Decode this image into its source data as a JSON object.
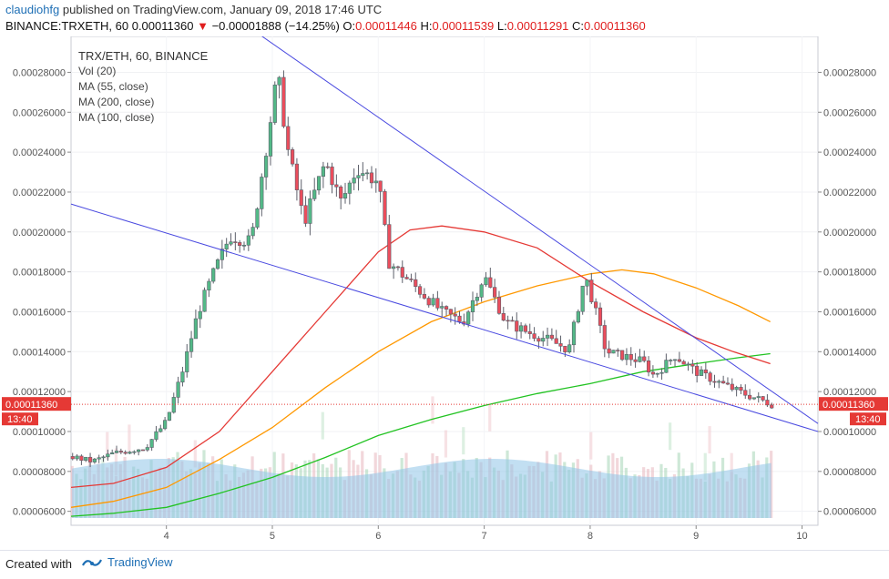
{
  "header": {
    "author": "claudiohfg",
    "published": "published on TradingView.com, January 09, 2018 17:46 UTC",
    "symbol": "BINANCE:TRXETH, 60",
    "last": "0.00011360",
    "change": "−0.00001888 (−14.25%)",
    "o_label": "O:",
    "o_value": "0.00011446",
    "h_label": "H:",
    "h_value": "0.00011539",
    "l_label": "L:",
    "l_value": "0.00011291",
    "c_label": "C:",
    "c_value": "0.00011360"
  },
  "legend": {
    "title": "TRX/ETH, 60, BINANCE",
    "vol": "Vol (20)",
    "ma55": "MA (55, close)",
    "ma200": "MA (200, close)",
    "ma100": "MA (100, close)"
  },
  "footer": {
    "created": "Created with",
    "brand": "TradingView"
  },
  "colors": {
    "up": "#53b987",
    "down": "#eb4d5c",
    "ma55": "#e53935",
    "ma100": "#ff9800",
    "ma200": "#22c322",
    "trend": "#4a4ae0",
    "volume": "#8fc4e8",
    "price_tag": "#e53935"
  },
  "chart_data": {
    "type": "candlestick",
    "x_tick_labels": [
      "4",
      "5",
      "6",
      "7",
      "8",
      "9",
      "10"
    ],
    "x_ticks": [
      4,
      5,
      6,
      7,
      8,
      9,
      10
    ],
    "xlim": [
      3.1,
      10.15
    ],
    "ylim": [
      5.3e-05,
      0.000298
    ],
    "y_tick_labels": [
      "0.00028000",
      "0.00026000",
      "0.00024000",
      "0.00022000",
      "0.00020000",
      "0.00018000",
      "0.00016000",
      "0.00014000",
      "0.00012000",
      "0.00010000",
      "0.00008000",
      "0.00006000"
    ],
    "y_ticks": [
      0.00028,
      0.00026,
      0.00024,
      0.00022,
      0.0002,
      0.00018,
      0.00016,
      0.00014,
      0.00012,
      0.0001,
      8e-05,
      6e-05
    ],
    "last_price_label": "0.00011360",
    "last_price": 0.0001136,
    "countdown": "13:40",
    "price_path": [
      [
        3.1,
        8.75e-05
      ],
      [
        3.3,
        8.5e-05
      ],
      [
        3.5,
        8.9e-05
      ],
      [
        3.8,
        9.2e-05
      ],
      [
        4.0,
        0.000105
      ],
      [
        4.15,
        0.00013
      ],
      [
        4.3,
        0.00016
      ],
      [
        4.45,
        0.00018
      ],
      [
        4.6,
        0.000198
      ],
      [
        4.8,
        0.000195
      ],
      [
        5.0,
        0.000262
      ],
      [
        5.05,
        0.000279
      ],
      [
        5.15,
        0.00024
      ],
      [
        5.3,
        0.000205
      ],
      [
        5.5,
        0.000235
      ],
      [
        5.65,
        0.000215
      ],
      [
        5.8,
        0.000232
      ],
      [
        6.0,
        0.000225
      ],
      [
        6.1,
        0.000185
      ],
      [
        6.2,
        0.00018
      ],
      [
        6.4,
        0.00017
      ],
      [
        6.6,
        0.00016
      ],
      [
        6.8,
        0.000155
      ],
      [
        7.0,
        0.000178
      ],
      [
        7.2,
        0.000155
      ],
      [
        7.4,
        0.00015
      ],
      [
        7.6,
        0.000146
      ],
      [
        7.8,
        0.000141
      ],
      [
        7.95,
        0.000178
      ],
      [
        8.0,
        0.00017
      ],
      [
        8.15,
        0.00014
      ],
      [
        8.3,
        0.000138
      ],
      [
        8.5,
        0.000135
      ],
      [
        8.6,
        0.000128
      ],
      [
        8.8,
        0.000138
      ],
      [
        9.0,
        0.00013
      ],
      [
        9.2,
        0.000125
      ],
      [
        9.4,
        0.00012
      ],
      [
        9.55,
        0.000117
      ],
      [
        9.72,
        0.0001136
      ]
    ],
    "ma55": [
      [
        3.1,
        7.2e-05
      ],
      [
        3.5,
        7.4e-05
      ],
      [
        4.0,
        8.2e-05
      ],
      [
        4.5,
        0.0001
      ],
      [
        5.0,
        0.00013
      ],
      [
        5.5,
        0.00016
      ],
      [
        6.0,
        0.00019
      ],
      [
        6.3,
        0.000201
      ],
      [
        6.6,
        0.000203
      ],
      [
        7.0,
        0.0002
      ],
      [
        7.5,
        0.000192
      ],
      [
        8.0,
        0.000175
      ],
      [
        8.5,
        0.00016
      ],
      [
        9.0,
        0.000147
      ],
      [
        9.35,
        0.00014
      ],
      [
        9.7,
        0.000134
      ]
    ],
    "ma100": [
      [
        3.1,
        6.2e-05
      ],
      [
        3.5,
        6.5e-05
      ],
      [
        4.0,
        7.2e-05
      ],
      [
        4.5,
        8.6e-05
      ],
      [
        5.0,
        0.000102
      ],
      [
        5.5,
        0.000122
      ],
      [
        6.0,
        0.00014
      ],
      [
        6.5,
        0.000155
      ],
      [
        7.0,
        0.000165
      ],
      [
        7.5,
        0.000173
      ],
      [
        8.0,
        0.000179
      ],
      [
        8.3,
        0.000181
      ],
      [
        8.6,
        0.000179
      ],
      [
        9.0,
        0.000172
      ],
      [
        9.4,
        0.000163
      ],
      [
        9.7,
        0.000155
      ]
    ],
    "ma200": [
      [
        3.1,
        5.75e-05
      ],
      [
        3.5,
        5.9e-05
      ],
      [
        4.0,
        6.2e-05
      ],
      [
        4.5,
        6.9e-05
      ],
      [
        5.0,
        7.7e-05
      ],
      [
        5.5,
        8.7e-05
      ],
      [
        6.0,
        9.8e-05
      ],
      [
        6.5,
        0.000106
      ],
      [
        7.0,
        0.000113
      ],
      [
        7.5,
        0.000119
      ],
      [
        8.0,
        0.000124
      ],
      [
        8.5,
        0.00013
      ],
      [
        9.0,
        0.000134
      ],
      [
        9.4,
        0.000137
      ],
      [
        9.7,
        0.000139
      ]
    ],
    "trendlines": [
      [
        [
          4.85,
          0.0003
        ],
        [
          10.15,
          0.000104
        ]
      ],
      [
        [
          3.1,
          0.000214
        ],
        [
          10.15,
          0.0001
        ]
      ]
    ],
    "volume_label": "Vol (20)"
  }
}
